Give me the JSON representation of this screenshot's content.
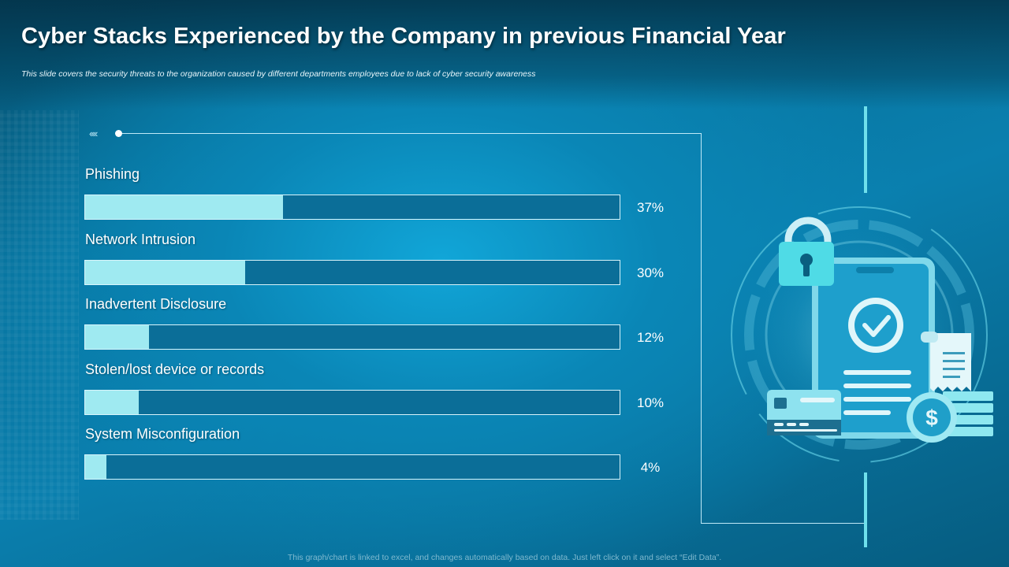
{
  "slide": {
    "title": "Cyber Stacks Experienced by the Company in previous Financial Year",
    "subtitle": "This slide covers the security threats to the organization caused by different departments employees due to lack of cyber security awareness",
    "footnote": "This graph/chart is linked to excel,  and changes automatically based on data. Just left click on it and select “Edit Data”.",
    "decor": {
      "chevrons": "‹‹‹‹"
    }
  },
  "colors": {
    "background": "#0a86b6",
    "bar_fill": "#9feaf1",
    "bar_track": "#0b6e98",
    "accent": "#4fdbe6"
  },
  "chart_data": {
    "type": "bar",
    "orientation": "horizontal",
    "categories": [
      "Phishing",
      "Network Intrusion",
      "Inadvertent  Disclosure",
      "Stolen/lost device or records",
      "System Misconfiguration"
    ],
    "values": [
      37,
      30,
      12,
      10,
      4
    ],
    "value_labels": [
      "37%",
      "30%",
      "12%",
      "10%",
      "4%"
    ],
    "unit": "%",
    "xlim": [
      0,
      100
    ],
    "grid": false,
    "legend": "none"
  },
  "illustration": {
    "icons": [
      "padlock-icon",
      "smartphone-icon",
      "checkmark-icon",
      "credit-card-icon",
      "receipt-icon",
      "dollar-coin-icon",
      "coin-stack-icon"
    ]
  }
}
